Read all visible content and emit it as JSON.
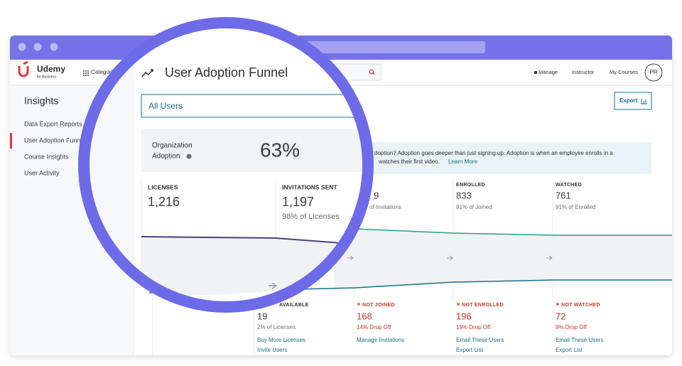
{
  "browser": {
    "address": ""
  },
  "header": {
    "logo": "Udemy",
    "logo_sub": "for Business",
    "categories": "Categories",
    "manage": "Manage",
    "instructor": "Instructor",
    "my_courses": "My Courses",
    "avatar": "PR"
  },
  "sidebar": {
    "title": "Insights",
    "items": [
      "Data Export Reports",
      "User Adoption Funnel",
      "Course Insights",
      "User Activity"
    ]
  },
  "main": {
    "export": "Export",
    "banner": {
      "line1": "doption? Adoption goes deeper than just signing up. Adoption is when an employee enrolls in a",
      "line2": "watches their first video.",
      "link": "Learn More"
    },
    "columns": [
      {
        "number": "9",
        "caption": "of Invitations"
      },
      {
        "label": "ENROLLED",
        "number": "833",
        "caption": "81% of Joined"
      },
      {
        "label": "WATCHED",
        "number": "761",
        "caption": "91% of Enrolled"
      }
    ],
    "dropoffs": [
      {
        "label": "AVAILABLE",
        "number": "19",
        "caption": "2% of Licenses",
        "links": [
          "Buy More Licenses",
          "Invite Users"
        ]
      },
      {
        "label": "NOT JOINED",
        "number": "168",
        "caption": "14% Drop Off",
        "links": [
          "Manage Invitations"
        ]
      },
      {
        "label": "NOT ENROLLED",
        "number": "196",
        "caption": "19% Drop Off",
        "links": [
          "Email These Users",
          "Export List"
        ]
      },
      {
        "label": "NOT WATCHED",
        "number": "72",
        "caption": "9% Drop Off",
        "links": [
          "Email These Users",
          "Export List"
        ]
      }
    ]
  },
  "magnifier": {
    "title": "User Adoption Funnel",
    "filter": "All Users",
    "adoption_label": [
      "Organization",
      "Adoption"
    ],
    "adoption_value": "63%",
    "stats": [
      {
        "label": "LICENSES",
        "number": "1,216"
      },
      {
        "label": "INVITATIONS SENT",
        "number": "1,197",
        "caption": "98% of Licenses"
      }
    ]
  }
}
